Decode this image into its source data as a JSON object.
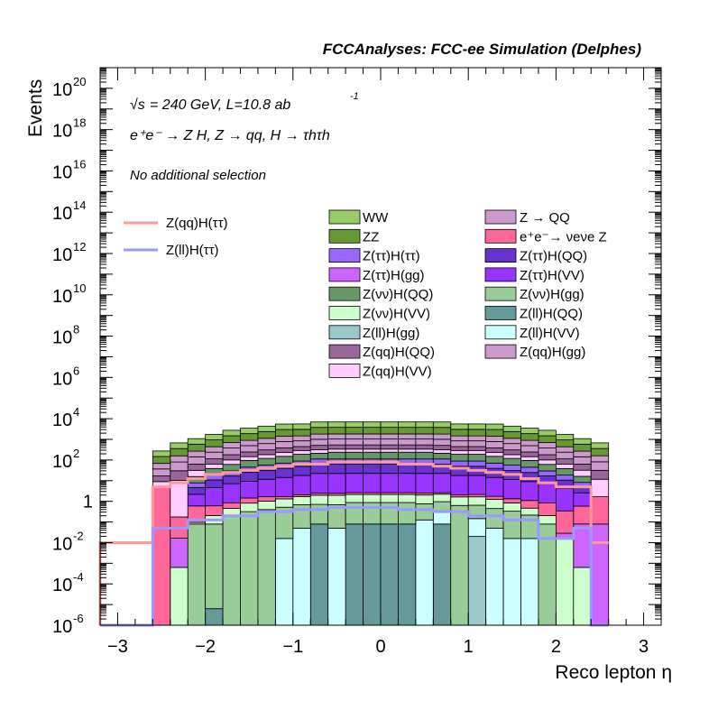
{
  "chart_data": {
    "type": "stacked-histogram",
    "title": "FCCAnalyses: FCC-ee Simulation (Delphes)",
    "xlabel": "Reco lepton η",
    "ylabel": "Events",
    "xlim": [
      -3.2,
      3.2
    ],
    "ylim_log10": [
      -6,
      21
    ],
    "yscale": "log",
    "x_tick_labels": [
      "−3",
      "−2",
      "−1",
      "0",
      "1",
      "2",
      "3"
    ],
    "x_tick_values": [
      -3,
      -2,
      -1,
      0,
      1,
      2,
      3
    ],
    "y_tick_labels": [
      {
        "exp": "-6",
        "plain": ""
      },
      {
        "exp": "-4",
        "plain": ""
      },
      {
        "exp": "-2",
        "plain": ""
      },
      {
        "exp": "",
        "plain": "1"
      },
      {
        "exp": "2",
        "plain": ""
      },
      {
        "exp": "4",
        "plain": ""
      },
      {
        "exp": "6",
        "plain": ""
      },
      {
        "exp": "8",
        "plain": ""
      },
      {
        "exp": "10",
        "plain": ""
      },
      {
        "exp": "12",
        "plain": ""
      },
      {
        "exp": "14",
        "plain": ""
      },
      {
        "exp": "16",
        "plain": ""
      },
      {
        "exp": "18",
        "plain": ""
      },
      {
        "exp": "20",
        "plain": ""
      }
    ],
    "y_tick_values": [
      -6,
      -4,
      -2,
      0,
      2,
      4,
      6,
      8,
      10,
      12,
      14,
      16,
      18,
      20
    ],
    "annotations": {
      "energy_line": "= 240 GeV, L=10.8 ab",
      "sqrt_symbol": "√s",
      "lumi_exponent": "-1",
      "process_line": "e⁺e⁻ → Z H, Z → qq, H → τhτh",
      "selection": "No additional selection"
    },
    "bins_eta": [
      -2.6,
      -2.4,
      -2.2,
      -2.0,
      -1.8,
      -1.6,
      -1.4,
      -1.2,
      -1.0,
      -0.8,
      -0.6,
      -0.4,
      -0.2,
      0.0,
      0.2,
      0.4,
      0.6,
      0.8,
      1.0,
      1.2,
      1.4,
      1.6,
      1.8,
      2.0,
      2.2,
      2.4,
      2.6
    ],
    "stack_series": [
      {
        "name": "Z(ll)H(gg)",
        "color": "#99c9c9",
        "log10_contrib": [
          -9,
          -9,
          -9,
          -9,
          -9,
          -9,
          -9,
          -9,
          -9,
          -9,
          -9,
          -9,
          -9,
          -9,
          -9,
          -9,
          -9,
          -9,
          -1.7,
          -9,
          -9,
          -9,
          -9,
          -9,
          -9,
          -9
        ]
      },
      {
        "name": "Z(ll)H(QQ)",
        "color": "#669999",
        "log10_contrib": [
          -9,
          -9,
          -9,
          -5.2,
          -9,
          -9,
          -9,
          -9,
          -9,
          -1.1,
          -9,
          -1.1,
          -1.1,
          -1.1,
          -1.1,
          -9,
          -1.1,
          -9,
          -9,
          -9,
          -9,
          -9,
          -9,
          -9,
          -9,
          -9
        ]
      },
      {
        "name": "Z(ll)H(VV)",
        "color": "#ccffff",
        "log10_contrib": [
          -9,
          -9,
          -9,
          -9,
          -9,
          -9,
          -9,
          -1.8,
          -1.3,
          -9,
          -1.3,
          -9,
          -9,
          -9,
          -9,
          -0.9,
          -0.6,
          -9,
          -0.9,
          -1.3,
          -1.8,
          -1.8,
          -9,
          -9,
          -9,
          -9
        ]
      },
      {
        "name": "Z(νν)H(gg)",
        "color": "#99cc99",
        "log10_contrib": [
          -9,
          -9,
          -1.1,
          -1.1,
          -0.7,
          -0.5,
          -0.4,
          -0.3,
          -0.2,
          -0.2,
          -0.2,
          -0.1,
          -0.1,
          -0.1,
          -0.1,
          -0.2,
          -0.2,
          -0.2,
          -0.3,
          -0.4,
          -0.5,
          -0.7,
          -1.1,
          -9,
          -9,
          -9
        ]
      },
      {
        "name": "Z(νν)H(VV)",
        "color": "#ccffcc",
        "log10_contrib": [
          -9,
          -3.2,
          -1.8,
          -0.9,
          -0.6,
          -0.3,
          -0.2,
          -0.1,
          0.0,
          0.1,
          0.1,
          0.1,
          0.1,
          0.1,
          0.1,
          0.1,
          0.1,
          0.0,
          0.0,
          -0.1,
          -0.3,
          -0.6,
          -0.9,
          -1.8,
          -3.2,
          -9
        ]
      },
      {
        "name": "Z(ττ)H(gg)",
        "color": "#cc66ff",
        "log10_contrib": [
          -9,
          -1.8,
          -9,
          -9,
          -9,
          -9,
          -9,
          -9,
          -9,
          -9,
          -9,
          -9,
          -9,
          -9,
          -9,
          -9,
          -9,
          -9,
          -9,
          -9,
          -9,
          -9,
          -9,
          -1.9,
          -1.1,
          -1.1
        ]
      },
      {
        "name": "e⁺e⁻→ νeνe Z",
        "color": "#ff6699",
        "log10_contrib": [
          0.7,
          -0.8,
          -0.3,
          -0.4,
          -0.4,
          -0.2,
          -0.2,
          -0.4,
          -0.4,
          -0.3,
          -0.3,
          -0.3,
          -0.3,
          -0.3,
          -0.3,
          -0.3,
          -0.4,
          -0.4,
          -0.3,
          -0.3,
          -0.3,
          -0.2,
          -0.2,
          -0.5,
          -0.3,
          0.2
        ]
      },
      {
        "name": "Z(ττ)H(VV)",
        "color": "#9933ff",
        "log10_contrib": [
          -9,
          -9,
          0.2,
          0.6,
          0.8,
          0.9,
          1.0,
          1.1,
          1.2,
          1.3,
          1.3,
          1.3,
          1.3,
          1.3,
          1.3,
          1.3,
          1.3,
          1.2,
          1.2,
          1.1,
          1.0,
          0.9,
          0.8,
          0.6,
          0.3,
          -9
        ]
      },
      {
        "name": "Z(ττ)H(QQ)",
        "color": "#6633cc",
        "log10_contrib": [
          -9,
          -9,
          0.4,
          0.8,
          1.0,
          1.2,
          1.3,
          1.4,
          1.5,
          1.6,
          1.6,
          1.6,
          1.6,
          1.6,
          1.6,
          1.6,
          1.6,
          1.5,
          1.5,
          1.4,
          1.3,
          1.2,
          1.0,
          0.8,
          0.4,
          -9
        ]
      },
      {
        "name": "Z(ττ)H(ττ)",
        "color": "#9966ff",
        "log10_contrib": [
          -9,
          -9,
          0.5,
          0.9,
          1.1,
          1.3,
          1.4,
          1.5,
          1.6,
          1.7,
          1.7,
          1.7,
          1.7,
          1.7,
          1.7,
          1.7,
          1.7,
          1.6,
          1.6,
          1.5,
          1.4,
          1.3,
          1.1,
          0.9,
          0.5,
          -9
        ]
      },
      {
        "name": "Z(νν)H(QQ)",
        "color": "#669966",
        "log10_contrib": [
          -9,
          -9,
          0.9,
          1.3,
          1.5,
          1.7,
          1.8,
          1.9,
          2.0,
          2.0,
          2.1,
          2.1,
          2.1,
          2.1,
          2.1,
          2.1,
          2.0,
          2.0,
          2.0,
          1.9,
          1.8,
          1.7,
          1.5,
          1.3,
          0.9,
          -9
        ]
      },
      {
        "name": "Z(qq)H(VV)",
        "color": "#ffccff",
        "log10_contrib": [
          0.6,
          1.0,
          1.2,
          1.4,
          1.6,
          1.7,
          1.8,
          1.9,
          2.0,
          2.0,
          2.0,
          2.0,
          2.0,
          2.0,
          2.0,
          2.0,
          2.0,
          2.0,
          2.0,
          1.9,
          1.8,
          1.7,
          1.6,
          1.4,
          1.2,
          1.0
        ]
      },
      {
        "name": "Z(qq)H(QQ)",
        "color": "#996699",
        "log10_contrib": [
          0.9,
          1.3,
          1.5,
          1.7,
          1.9,
          2.0,
          2.1,
          2.2,
          2.2,
          2.3,
          2.3,
          2.3,
          2.3,
          2.3,
          2.3,
          2.3,
          2.3,
          2.2,
          2.2,
          2.2,
          2.1,
          2.0,
          1.9,
          1.7,
          1.5,
          1.3
        ]
      },
      {
        "name": "Z(qq)H(gg)",
        "color": "#cc99cc",
        "log10_contrib": [
          1.3,
          1.7,
          1.9,
          2.1,
          2.3,
          2.4,
          2.5,
          2.6,
          2.6,
          2.7,
          2.7,
          2.7,
          2.7,
          2.7,
          2.7,
          2.7,
          2.7,
          2.6,
          2.6,
          2.6,
          2.5,
          2.4,
          2.3,
          2.1,
          1.9,
          1.7
        ]
      },
      {
        "name": "Z → QQ",
        "color": "#cc99cc",
        "log10_contrib": [
          1.5,
          1.9,
          2.1,
          2.3,
          2.5,
          2.6,
          2.7,
          2.8,
          2.8,
          2.9,
          2.9,
          2.9,
          2.9,
          2.9,
          2.9,
          2.9,
          2.9,
          2.8,
          2.8,
          2.8,
          2.7,
          2.6,
          2.5,
          2.3,
          2.1,
          1.9
        ]
      },
      {
        "name": "ZZ",
        "color": "#669933",
        "log10_contrib": [
          1.9,
          2.3,
          2.5,
          2.7,
          2.9,
          3.0,
          3.1,
          3.2,
          3.2,
          3.3,
          3.3,
          3.3,
          3.3,
          3.3,
          3.3,
          3.3,
          3.3,
          3.2,
          3.2,
          3.2,
          3.1,
          3.0,
          2.9,
          2.7,
          2.5,
          2.3
        ]
      },
      {
        "name": "WW",
        "color": "#99cc66",
        "log10_contrib": [
          2.1,
          2.5,
          2.7,
          2.9,
          3.1,
          3.2,
          3.3,
          3.4,
          3.4,
          3.5,
          3.5,
          3.5,
          3.5,
          3.5,
          3.5,
          3.5,
          3.5,
          3.4,
          3.4,
          3.4,
          3.3,
          3.2,
          3.1,
          2.9,
          2.7,
          2.5
        ]
      }
    ],
    "signal_lines": [
      {
        "name": "Z(qq)H(ττ)",
        "color": "#ff9999",
        "log10_values": [
          -2,
          0.7,
          0.9,
          1.1,
          1.3,
          1.4,
          1.5,
          1.6,
          1.7,
          1.8,
          1.8,
          1.9,
          1.9,
          1.9,
          1.9,
          1.8,
          1.8,
          1.7,
          1.6,
          1.5,
          1.4,
          1.3,
          1.1,
          0.9,
          0.7,
          0.7,
          -2
        ]
      },
      {
        "name": "Z(ll)H(ττ)",
        "color": "#9999ff",
        "log10_values": [
          -6,
          -1.3,
          -1.3,
          -0.9,
          -0.9,
          -0.7,
          -0.7,
          -0.5,
          -0.5,
          -0.4,
          -0.4,
          -0.3,
          -0.3,
          -0.3,
          -0.3,
          -0.4,
          -0.4,
          -0.5,
          -0.5,
          -0.7,
          -0.7,
          -0.9,
          -0.9,
          -1.8,
          -1.8,
          -1.3,
          -6
        ]
      }
    ],
    "legend_left": [
      "Z(qq)H(ττ)",
      "Z(ll)H(ττ)"
    ],
    "legend_col1": [
      "WW",
      "ZZ",
      "Z(ττ)H(ττ)",
      "Z(ττ)H(gg)",
      "Z(νν)H(QQ)",
      "Z(νν)H(VV)",
      "Z(ll)H(gg)",
      "Z(qq)H(QQ)",
      "Z(qq)H(VV)"
    ],
    "legend_col2": [
      "Z → QQ",
      "e⁺e⁻→ νeνe Z",
      "Z(ττ)H(QQ)",
      "Z(ττ)H(VV)",
      "Z(νν)H(gg)",
      "Z(ll)H(QQ)",
      "Z(ll)H(VV)",
      "Z(qq)H(gg)"
    ],
    "legend_placement": "top-right"
  }
}
